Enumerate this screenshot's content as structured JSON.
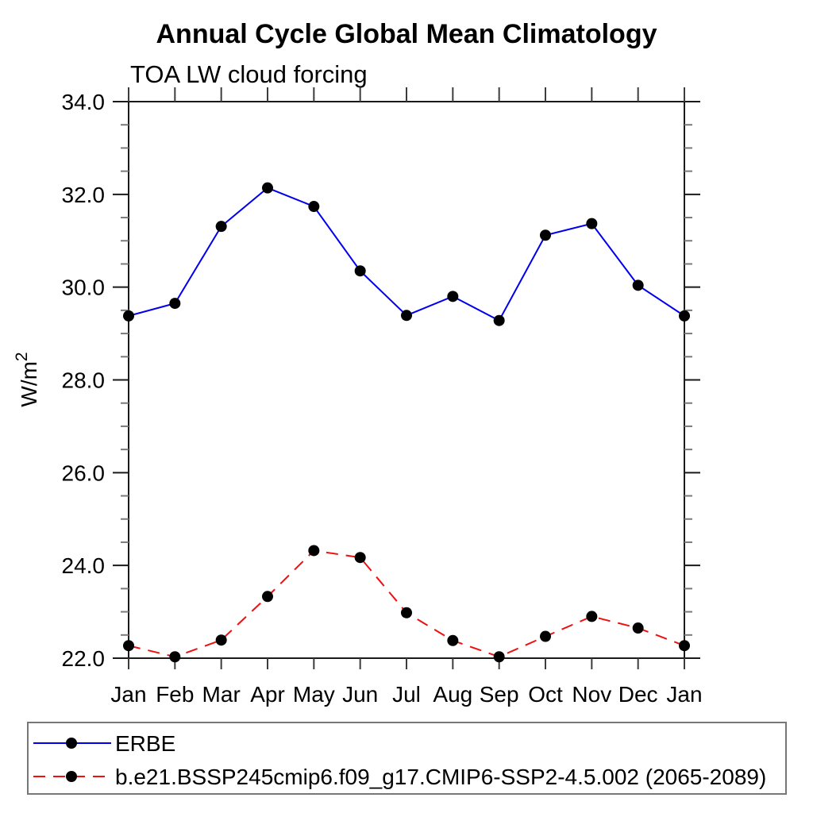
{
  "header": {
    "title": "Annual Cycle Global Mean Climatology",
    "subtitle": "TOA LW cloud forcing"
  },
  "chart_data": {
    "type": "line",
    "title": "Annual Cycle Global Mean Climatology",
    "subtitle": "TOA LW cloud forcing",
    "xlabel": "",
    "ylabel": "W/m²",
    "categories": [
      "Jan",
      "Feb",
      "Mar",
      "Apr",
      "May",
      "Jun",
      "Jul",
      "Aug",
      "Sep",
      "Oct",
      "Nov",
      "Dec",
      "Jan"
    ],
    "ylim": [
      22.0,
      34.0
    ],
    "ytick_interval": 2.0,
    "yminor_interval": 0.5,
    "ytick_labels": [
      "22.0",
      "24.0",
      "26.0",
      "28.0",
      "30.0",
      "32.0",
      "34.0"
    ],
    "grid": false,
    "legend_position": "bottom-left-box",
    "series": [
      {
        "name": "ERBE",
        "line_color": "#0000ee",
        "line_style": "solid",
        "marker": "filled-circle",
        "marker_color": "#000000",
        "values": [
          29.38,
          29.65,
          31.31,
          32.14,
          31.74,
          30.35,
          29.39,
          29.8,
          29.28,
          31.12,
          31.37,
          30.04,
          29.38
        ]
      },
      {
        "name": "b.e21.BSSP245cmip6.f09_g17.CMIP6-SSP2-4.5.002 (2065-2089)",
        "line_color": "#ee1111",
        "line_style": "dashed",
        "marker": "filled-circle",
        "marker_color": "#000000",
        "values": [
          22.27,
          22.03,
          22.39,
          23.33,
          24.32,
          24.17,
          22.98,
          22.38,
          22.03,
          22.47,
          22.9,
          22.65,
          22.27
        ]
      }
    ]
  },
  "colors": {
    "background": "#ffffff",
    "axis": "#1a1a1a",
    "minor_tick": "#7a7a7a",
    "x_tick": "#3c3c3c",
    "legend_border": "#777777",
    "text": "#000000"
  }
}
